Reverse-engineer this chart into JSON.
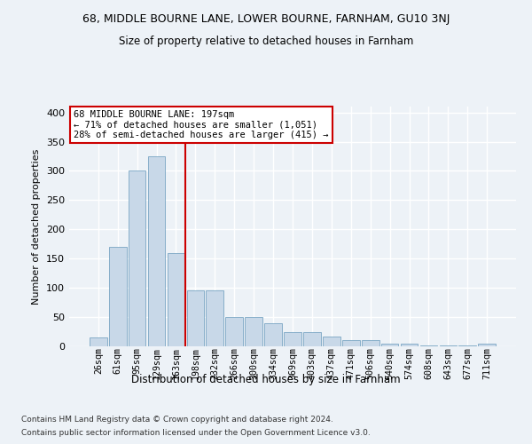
{
  "title1": "68, MIDDLE BOURNE LANE, LOWER BOURNE, FARNHAM, GU10 3NJ",
  "title2": "Size of property relative to detached houses in Farnham",
  "xlabel": "Distribution of detached houses by size in Farnham",
  "ylabel": "Number of detached properties",
  "footer1": "Contains HM Land Registry data © Crown copyright and database right 2024.",
  "footer2": "Contains public sector information licensed under the Open Government Licence v3.0.",
  "categories": [
    "26sqm",
    "61sqm",
    "95sqm",
    "129sqm",
    "163sqm",
    "198sqm",
    "232sqm",
    "266sqm",
    "300sqm",
    "334sqm",
    "369sqm",
    "403sqm",
    "437sqm",
    "471sqm",
    "506sqm",
    "540sqm",
    "574sqm",
    "608sqm",
    "643sqm",
    "677sqm",
    "711sqm"
  ],
  "values": [
    15,
    170,
    300,
    325,
    160,
    95,
    95,
    50,
    50,
    40,
    25,
    25,
    17,
    10,
    10,
    4,
    4,
    1,
    1,
    2,
    4
  ],
  "bar_color": "#c8d8e8",
  "bar_edge_color": "#6699bb",
  "annotation_text": "68 MIDDLE BOURNE LANE: 197sqm\n← 71% of detached houses are smaller (1,051)\n28% of semi-detached houses are larger (415) →",
  "annotation_box_color": "#ffffff",
  "annotation_box_edge": "#cc0000",
  "vline_color": "#cc0000",
  "bg_color": "#edf2f7",
  "plot_bg_color": "#edf2f7",
  "grid_color": "#ffffff",
  "ylim": [
    0,
    410
  ],
  "yticks": [
    0,
    50,
    100,
    150,
    200,
    250,
    300,
    350,
    400
  ]
}
